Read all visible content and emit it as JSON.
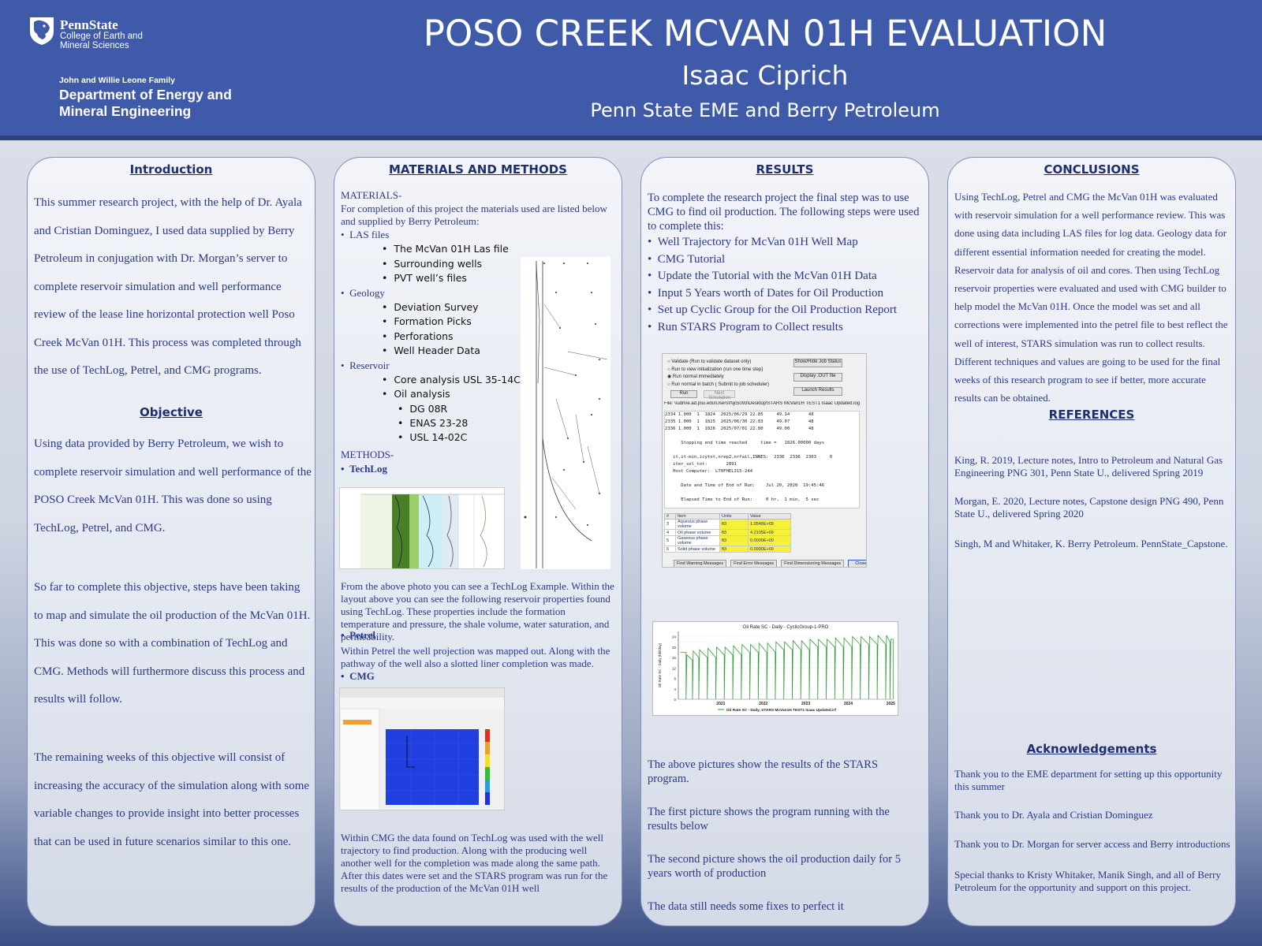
{
  "header": {
    "university": "PennState",
    "college": "College of Earth and Mineral Sciences",
    "dept_family": "John and Willie Leone Family",
    "dept_name": "Department of Energy and Mineral Engineering",
    "title": "POSO CREEK MCVAN 01H EVALUATION",
    "author": "Isaac Ciprich",
    "affiliation": "Penn State EME and Berry Petroleum"
  },
  "intro": {
    "title": "Introduction",
    "text": "This summer research project, with the help of Dr. Ayala and Cristian Dominguez, I used data supplied by Berry Petroleum in conjugation with Dr. Morgan’s server to complete reservoir simulation and well performance review of the lease line horizontal protection well Poso Creek McVan 01H. This process was completed through the use of TechLog, Petrel, and CMG programs.",
    "objective_title": "Objective",
    "objective_text": "Using data provided by Berry Petroleum, we wish to complete reservoir simulation and well performance of the POSO Creek McVan 01H. This was done so using TechLog, Petrel, and CMG.",
    "progress_text": "So far to complete this objective, steps have been taking to map and simulate the oil production of the McVan 01H. This was done so with a combination of TechLog and CMG. Methods will furthermore discuss this process and results will follow.",
    "remaining_text": "The remaining weeks of this objective will consist of increasing the accuracy of the simulation along with some variable changes to provide insight into better processes that can be used in future scenarios similar to this one."
  },
  "materials": {
    "title": "MATERIALS AND METHODS",
    "materials_label": "MATERIALS-",
    "materials_intro": "For completion of this project the materials used are listed below and supplied by Berry Petroleum:",
    "las_label": "LAS files",
    "las_items": [
      "The McVan 01H Las file",
      "Surrounding wells",
      "PVT well’s files"
    ],
    "geology_label": "Geology",
    "geology_items": [
      "Deviation Survey",
      "Formation Picks",
      "Perforations",
      "Well Header Data"
    ],
    "reservoir_label": "Reservoir",
    "reservoir_items": [
      "Core analysis USL 35-14C",
      "Oil analysis"
    ],
    "oil_items": [
      "DG 08R",
      "ENAS 23-28",
      "USL 14-02C"
    ],
    "methods_label": "METHODS-",
    "techlog_label": "TechLog",
    "techlog_text": "From the above photo you can see a TechLog Example. Within the layout above you can see the following reservoir properties found using TechLog. These properties include the formation temperature and pressure, the shale volume, water saturation, and permeability.",
    "petrel_label": "Petrel",
    "petrel_text": "Within Petrel the well projection was mapped out. Along with the pathway of the well also a slotted liner completion was made.",
    "cmg_label": "CMG",
    "cmg_text": "Within CMG the data found on TechLog was used with the well trajectory to find production. Along with the producing well another well for the completion was made along the same path. After this dates were set and the STARS program was run for the results of the production of the McVan 01H well"
  },
  "results": {
    "title": "RESULTS",
    "intro": "To complete the research project the final step was to use CMG to find oil production. The following steps were used to complete this:",
    "steps": [
      "Well Trajectory for McVan 01H Well Map",
      "CMG Tutorial",
      "Update the Tutorial with the McVan 01H Data",
      "Input 5 Years worth of Dates for Oil Production",
      "Set up Cyclic Group for the Oil Production Report",
      "Run STARS Program to Collect results"
    ],
    "p1": "The above pictures show the results of the STARS program.",
    "p2": "The first picture shows the program running with the results below",
    "p3": "The second picture shows the oil production daily for 5 years worth of production",
    "p4": "The data still needs some fixes to perfect it",
    "screenshot": {
      "options": [
        "Validate (Run to validate dataset only)",
        "Run to view initialization (run one time step)",
        "Run normal immediately",
        "Run normal in batch ( Submit to job scheduler)"
      ],
      "buttons": [
        "Show/Hide Job Status",
        "Display .OUT file",
        "Launch Results"
      ],
      "run_label": "Run",
      "next_label": "Next Simulation",
      "file_path": "File: \\\\udrive.ad.psu.edu\\Users\\f\\ijc5093\\Desktop\\STARS McVan1H TEST1 Isaac Updated.log",
      "log_lines": [
        "2334 1.000  1  1824  2025/06/29 22.85     49.14       48",
        "2335 1.000  1  1825  2025/06/30 22.83     49.07       48",
        "2336 1.000  1  1826  2025/07/01 22.80     49.00       48",
        "",
        "      Stopping end time reached     time =   1826.00000 days",
        "",
        "   it,it-min,icytot,nrep2,nrfail,INNES:  2336  2336  2303     0",
        "   iter_sol_tot:       2891",
        "   Host Computer:  LT0FHEL315-244",
        "",
        "      Date and Time of End of Run:    Jul 20, 2020  19:45:46",
        "",
        "      Elapsed Time to End of Run:     0 hr,  1 min,  5 sec"
      ],
      "table_headers": [
        "#",
        "Item",
        "Units",
        "Value"
      ],
      "table_rows": [
        [
          "3",
          "Aqueous phase volume",
          "ft3",
          "1.0546E+09"
        ],
        [
          "4",
          "Oil phase volume",
          "ft3",
          "4.2105E+09"
        ],
        [
          "5",
          "Gaseous phase volume",
          "ft3",
          "0.0000E+00"
        ],
        [
          "6",
          "Solid phase volume",
          "ft3",
          "0.0000E+00"
        ]
      ],
      "bottom_buttons": [
        "Find Warning Messages",
        "Find Error Messages",
        "Find Dimensioning Messages",
        "Close"
      ]
    }
  },
  "conclusions": {
    "title": "CONCLUSIONS",
    "text": "Using TechLog, Petrel and CMG the McVan 01H was evaluated with reservoir simulation for a well performance review. This was done using data including LAS files for log data. Geology data for different essential information needed for creating the model. Reservoir data for analysis of oil and cores. Then using TechLog reservoir properties were evaluated and used with CMG builder to help model the McVan 01H. Once the model was set and all corrections were implemented into the petrel file to best reflect the well of interest, STARS simulation was run to collect results. Different techniques and values are going to be used for the final weeks of this research program to see if better, more accurate results can be obtained.",
    "references_title": "REFERENCES",
    "references": [
      "King, R. 2019, Lecture notes, Intro to Petroleum and Natural Gas Engineering PNG 301, Penn State U., delivered Spring 2019",
      "Morgan, E. 2020, Lecture notes, Capstone design PNG 490, Penn State U., delivered Spring 2020",
      "Singh, M and Whitaker, K. Berry Petroleum. PennState_Capstone."
    ],
    "ack_title": "Acknowledgements",
    "acks": [
      "Thank you to the EME department for setting up this opportunity this summer",
      "Thank you to Dr. Ayala and Cristian Dominguez",
      "Thank you to Dr. Morgan for server access and Berry introductions",
      "Special thanks to Kristy Whitaker, Manik Singh, and all of Berry Petroleum for the opportunity and support on this project."
    ]
  },
  "chart_data": {
    "type": "line",
    "title": "Oil Rate SC - Daily - CyclicGroup-1-PRO",
    "xlabel": "",
    "ylabel": "Oil Rate SC - Daily (bbl/day)",
    "legend": "Oil Rate SC - Daily, STARS McVan1H TEST1 Isaac Updated.irf",
    "legend_position": "bottom",
    "x_ticks": [
      "2021",
      "2022",
      "2023",
      "2024",
      "2025"
    ],
    "y_ticks": [
      "0",
      "2",
      "4",
      "6",
      "8",
      "10",
      "12",
      "14",
      "16",
      "18",
      "20",
      "22",
      "24"
    ],
    "ylim": [
      0,
      26
    ],
    "series_color": "#2e9e3a",
    "description_points": {
      "x": [
        2020.55,
        2020.7,
        2020.85,
        2021.0,
        2021.2,
        2021.4,
        2021.6,
        2021.8,
        2022.0,
        2022.2,
        2022.4,
        2022.6,
        2022.8,
        2023.0,
        2023.2,
        2023.4,
        2023.6,
        2023.8,
        2024.0,
        2024.2,
        2024.4,
        2024.6,
        2024.8,
        2025.0,
        2025.2,
        2025.4,
        2025.5
      ],
      "y_peak": [
        18,
        17,
        18.5,
        19,
        19.5,
        20,
        20,
        20.5,
        21,
        21,
        21.5,
        21.5,
        22,
        22,
        22.5,
        22.5,
        23,
        23,
        23,
        23.5,
        23.5,
        24,
        24,
        24,
        24.5,
        24.5,
        23
      ],
      "y_trough": [
        17,
        14,
        15,
        15,
        15,
        16,
        16,
        16,
        17,
        17,
        17,
        17,
        18,
        18,
        18,
        18,
        19,
        19,
        19,
        19,
        19,
        20,
        20,
        20,
        20,
        21,
        22
      ]
    }
  },
  "colors": {
    "header_bg": "#3f5aa8",
    "title_text": "#1f2f6e",
    "body_text": "#2a3a86",
    "highlight": "#f5f03a"
  }
}
